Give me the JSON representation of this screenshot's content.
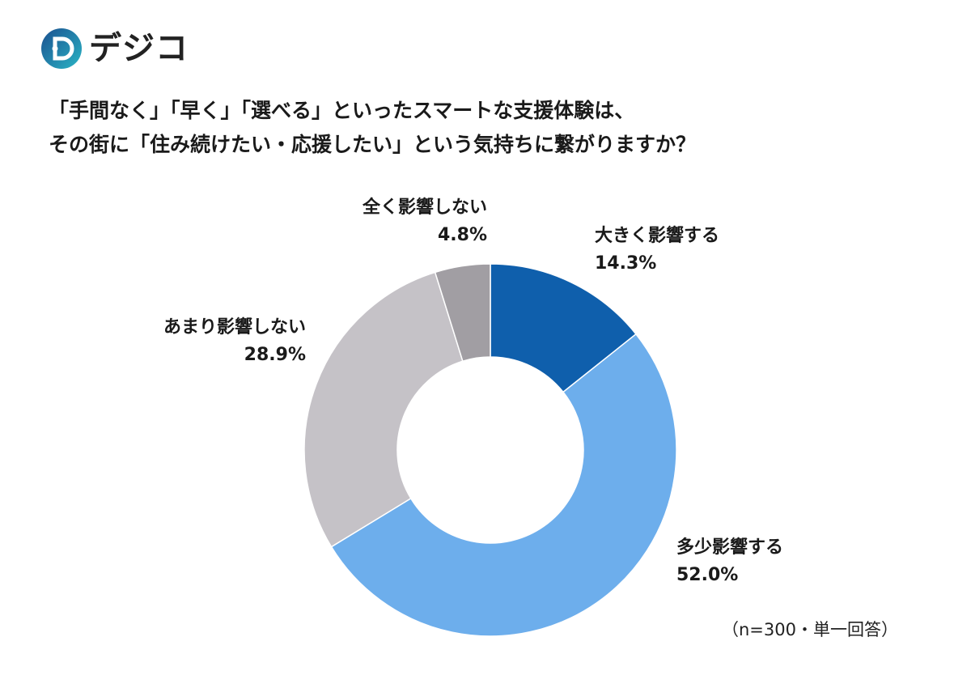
{
  "brand": {
    "name": "デジコ",
    "mark_letter": "D",
    "colors": {
      "primary": "#1a6fa8",
      "accent": "#2db4c8"
    }
  },
  "title_lines": [
    "「手間なく」「早く」「選べる」といったスマートな支援体験は、",
    "その街に「住み続けたい・応援したい」という気持ちに繋がりますか？"
  ],
  "note": "（n=300・単一回答）",
  "chart_data": {
    "type": "pie",
    "donut": true,
    "start": "12 o'clock, clockwise",
    "slices": [
      {
        "label": "大きく影響する",
        "value": 14.3,
        "value_label": "14.3%",
        "color": "#0f5fac"
      },
      {
        "label": "多少影響する",
        "value": 52.0,
        "value_label": "52.0%",
        "color": "#6daeec"
      },
      {
        "label": "あまり影響しない",
        "value": 28.9,
        "value_label": "28.9%",
        "color": "#c5c2c7"
      },
      {
        "label": "全く影響しない",
        "value": 4.8,
        "value_label": "4.8%",
        "color": "#a19ea3"
      }
    ]
  }
}
